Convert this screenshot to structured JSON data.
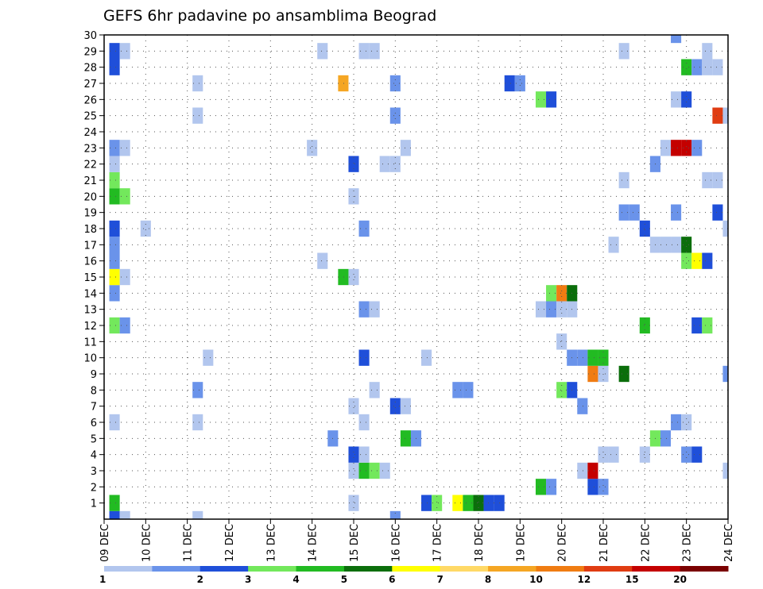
{
  "chart_data": {
    "type": "heatmap",
    "title": "GEFS 6hr padavine po ansamblima Beograd",
    "xlabel": "",
    "ylabel": "",
    "x_tick_labels": [
      "09 DEC",
      "10 DEC",
      "11 DEC",
      "12 DEC",
      "13 DEC",
      "14 DEC",
      "15 DEC",
      "16 DEC",
      "17 DEC",
      "18 DEC",
      "19 DEC",
      "20 DEC",
      "21 DEC",
      "22 DEC",
      "23 DEC",
      "24 DEC"
    ],
    "x_range_days": [
      9,
      24
    ],
    "step_hours": 6,
    "y_tick_labels": [
      "1",
      "2",
      "3",
      "4",
      "5",
      "6",
      "7",
      "8",
      "9",
      "10",
      "11",
      "12",
      "13",
      "14",
      "15",
      "16",
      "17",
      "18",
      "19",
      "20",
      "21",
      "22",
      "23",
      "24",
      "25",
      "26",
      "27",
      "28",
      "29",
      "30"
    ],
    "y_range": [
      0,
      30
    ],
    "grid": true,
    "colorbar": {
      "labels": [
        "1",
        "2",
        "3",
        "4",
        "5",
        "6",
        "7",
        "8",
        "10",
        "12",
        "15",
        "20"
      ],
      "colors": [
        "#b2c6ee",
        "#6a93ea",
        "#1f4fd9",
        "#73e85c",
        "#22bb22",
        "#0b6e0b",
        "#ffff00",
        "#ffd966",
        "#f5a623",
        "#f07c12",
        "#e03c12",
        "#c40000",
        "#7a0000"
      ]
    },
    "cells": [
      {
        "m": 0,
        "d": 9.25,
        "v": 3
      },
      {
        "m": 0,
        "d": 9.5,
        "v": 1
      },
      {
        "m": 0,
        "d": 11.25,
        "v": 1
      },
      {
        "m": 0,
        "d": 16.0,
        "v": 2
      },
      {
        "m": 1,
        "d": 9.25,
        "v": 5
      },
      {
        "m": 1,
        "d": 15.0,
        "v": 1
      },
      {
        "m": 1,
        "d": 16.75,
        "v": 3
      },
      {
        "m": 1,
        "d": 17.0,
        "v": 4
      },
      {
        "m": 1,
        "d": 17.5,
        "v": 7
      },
      {
        "m": 1,
        "d": 17.75,
        "v": 5
      },
      {
        "m": 1,
        "d": 18.0,
        "v": 6
      },
      {
        "m": 1,
        "d": 18.25,
        "v": 3
      },
      {
        "m": 1,
        "d": 18.5,
        "v": 3
      },
      {
        "m": 2,
        "d": 19.5,
        "v": 5
      },
      {
        "m": 2,
        "d": 19.75,
        "v": 2
      },
      {
        "m": 2,
        "d": 20.75,
        "v": 3
      },
      {
        "m": 2,
        "d": 21.0,
        "v": 2
      },
      {
        "m": 3,
        "d": 15.0,
        "v": 1
      },
      {
        "m": 3,
        "d": 15.25,
        "v": 5
      },
      {
        "m": 3,
        "d": 15.5,
        "v": 4
      },
      {
        "m": 3,
        "d": 15.75,
        "v": 1
      },
      {
        "m": 3,
        "d": 20.5,
        "v": 1
      },
      {
        "m": 3,
        "d": 20.75,
        "v": 20
      },
      {
        "m": 3,
        "d": 24.0,
        "v": 1
      },
      {
        "m": 4,
        "d": 15.0,
        "v": 3
      },
      {
        "m": 4,
        "d": 15.25,
        "v": 1
      },
      {
        "m": 4,
        "d": 21.0,
        "v": 1
      },
      {
        "m": 4,
        "d": 21.25,
        "v": 1
      },
      {
        "m": 4,
        "d": 22.0,
        "v": 1
      },
      {
        "m": 4,
        "d": 23.0,
        "v": 2
      },
      {
        "m": 4,
        "d": 23.25,
        "v": 3
      },
      {
        "m": 5,
        "d": 14.5,
        "v": 2
      },
      {
        "m": 5,
        "d": 16.25,
        "v": 5
      },
      {
        "m": 5,
        "d": 16.5,
        "v": 2
      },
      {
        "m": 5,
        "d": 22.25,
        "v": 4
      },
      {
        "m": 5,
        "d": 22.5,
        "v": 2
      },
      {
        "m": 6,
        "d": 9.25,
        "v": 1
      },
      {
        "m": 6,
        "d": 11.25,
        "v": 1
      },
      {
        "m": 6,
        "d": 15.25,
        "v": 1
      },
      {
        "m": 6,
        "d": 22.75,
        "v": 2
      },
      {
        "m": 6,
        "d": 23.0,
        "v": 1
      },
      {
        "m": 7,
        "d": 15.0,
        "v": 1
      },
      {
        "m": 7,
        "d": 16.0,
        "v": 3
      },
      {
        "m": 7,
        "d": 16.25,
        "v": 1
      },
      {
        "m": 7,
        "d": 20.5,
        "v": 2
      },
      {
        "m": 8,
        "d": 11.25,
        "v": 2
      },
      {
        "m": 8,
        "d": 15.5,
        "v": 1
      },
      {
        "m": 8,
        "d": 17.5,
        "v": 2
      },
      {
        "m": 8,
        "d": 17.75,
        "v": 2
      },
      {
        "m": 8,
        "d": 20.0,
        "v": 4
      },
      {
        "m": 8,
        "d": 20.25,
        "v": 3
      },
      {
        "m": 9,
        "d": 20.75,
        "v": 12
      },
      {
        "m": 9,
        "d": 21.0,
        "v": 1
      },
      {
        "m": 9,
        "d": 21.5,
        "v": 6
      },
      {
        "m": 9,
        "d": 24.0,
        "v": 2
      },
      {
        "m": 10,
        "d": 11.5,
        "v": 1
      },
      {
        "m": 10,
        "d": 15.25,
        "v": 3
      },
      {
        "m": 10,
        "d": 16.75,
        "v": 1
      },
      {
        "m": 10,
        "d": 20.25,
        "v": 2
      },
      {
        "m": 10,
        "d": 20.5,
        "v": 2
      },
      {
        "m": 10,
        "d": 20.75,
        "v": 5
      },
      {
        "m": 10,
        "d": 21.0,
        "v": 5
      },
      {
        "m": 11,
        "d": 20.0,
        "v": 1
      },
      {
        "m": 12,
        "d": 9.25,
        "v": 4
      },
      {
        "m": 12,
        "d": 9.5,
        "v": 2
      },
      {
        "m": 12,
        "d": 22.0,
        "v": 5
      },
      {
        "m": 12,
        "d": 23.25,
        "v": 3
      },
      {
        "m": 12,
        "d": 23.5,
        "v": 4
      },
      {
        "m": 13,
        "d": 15.25,
        "v": 2
      },
      {
        "m": 13,
        "d": 15.5,
        "v": 1
      },
      {
        "m": 13,
        "d": 19.5,
        "v": 1
      },
      {
        "m": 13,
        "d": 19.75,
        "v": 2
      },
      {
        "m": 13,
        "d": 20.0,
        "v": 1
      },
      {
        "m": 13,
        "d": 20.25,
        "v": 1
      },
      {
        "m": 14,
        "d": 9.25,
        "v": 2
      },
      {
        "m": 14,
        "d": 19.75,
        "v": 4
      },
      {
        "m": 14,
        "d": 20.0,
        "v": 12
      },
      {
        "m": 14,
        "d": 20.25,
        "v": 6
      },
      {
        "m": 15,
        "d": 9.25,
        "v": 7
      },
      {
        "m": 15,
        "d": 9.5,
        "v": 1
      },
      {
        "m": 15,
        "d": 14.75,
        "v": 5
      },
      {
        "m": 15,
        "d": 15.0,
        "v": 1
      },
      {
        "m": 16,
        "d": 9.25,
        "v": 2
      },
      {
        "m": 16,
        "d": 14.25,
        "v": 1
      },
      {
        "m": 16,
        "d": 23.0,
        "v": 4
      },
      {
        "m": 16,
        "d": 23.25,
        "v": 7
      },
      {
        "m": 16,
        "d": 23.5,
        "v": 3
      },
      {
        "m": 17,
        "d": 9.25,
        "v": 2
      },
      {
        "m": 17,
        "d": 21.25,
        "v": 1
      },
      {
        "m": 17,
        "d": 22.25,
        "v": 1
      },
      {
        "m": 17,
        "d": 22.5,
        "v": 1
      },
      {
        "m": 17,
        "d": 22.75,
        "v": 1
      },
      {
        "m": 17,
        "d": 23.0,
        "v": 6
      },
      {
        "m": 18,
        "d": 9.25,
        "v": 3
      },
      {
        "m": 18,
        "d": 10.0,
        "v": 1
      },
      {
        "m": 18,
        "d": 15.25,
        "v": 2
      },
      {
        "m": 18,
        "d": 22.0,
        "v": 3
      },
      {
        "m": 18,
        "d": 24.0,
        "v": 1
      },
      {
        "m": 19,
        "d": 21.5,
        "v": 2
      },
      {
        "m": 19,
        "d": 21.75,
        "v": 2
      },
      {
        "m": 19,
        "d": 22.75,
        "v": 2
      },
      {
        "m": 19,
        "d": 23.75,
        "v": 3
      },
      {
        "m": 20,
        "d": 9.25,
        "v": 5
      },
      {
        "m": 20,
        "d": 9.5,
        "v": 4
      },
      {
        "m": 20,
        "d": 15.0,
        "v": 1
      },
      {
        "m": 21,
        "d": 9.25,
        "v": 4
      },
      {
        "m": 21,
        "d": 21.5,
        "v": 1
      },
      {
        "m": 21,
        "d": 23.5,
        "v": 1
      },
      {
        "m": 21,
        "d": 23.75,
        "v": 1
      },
      {
        "m": 22,
        "d": 9.25,
        "v": 1
      },
      {
        "m": 22,
        "d": 15.0,
        "v": 3
      },
      {
        "m": 22,
        "d": 15.75,
        "v": 1
      },
      {
        "m": 22,
        "d": 16.0,
        "v": 1
      },
      {
        "m": 22,
        "d": 22.25,
        "v": 2
      },
      {
        "m": 23,
        "d": 9.25,
        "v": 2
      },
      {
        "m": 23,
        "d": 9.5,
        "v": 1
      },
      {
        "m": 23,
        "d": 14.0,
        "v": 1
      },
      {
        "m": 23,
        "d": 16.25,
        "v": 1
      },
      {
        "m": 23,
        "d": 22.5,
        "v": 1
      },
      {
        "m": 23,
        "d": 22.75,
        "v": 20
      },
      {
        "m": 23,
        "d": 23.0,
        "v": 20
      },
      {
        "m": 23,
        "d": 23.25,
        "v": 2
      },
      {
        "m": 25,
        "d": 11.25,
        "v": 1
      },
      {
        "m": 25,
        "d": 16.0,
        "v": 2
      },
      {
        "m": 25,
        "d": 23.75,
        "v": 15
      },
      {
        "m": 25,
        "d": 24.0,
        "v": 1
      },
      {
        "m": 26,
        "d": 19.5,
        "v": 4
      },
      {
        "m": 26,
        "d": 19.75,
        "v": 3
      },
      {
        "m": 26,
        "d": 22.75,
        "v": 1
      },
      {
        "m": 26,
        "d": 23.0,
        "v": 3
      },
      {
        "m": 27,
        "d": 11.25,
        "v": 1
      },
      {
        "m": 27,
        "d": 14.75,
        "v": 10
      },
      {
        "m": 27,
        "d": 16.0,
        "v": 2
      },
      {
        "m": 27,
        "d": 18.75,
        "v": 3
      },
      {
        "m": 27,
        "d": 19.0,
        "v": 2
      },
      {
        "m": 28,
        "d": 9.25,
        "v": 3
      },
      {
        "m": 28,
        "d": 23.0,
        "v": 5
      },
      {
        "m": 28,
        "d": 23.25,
        "v": 2
      },
      {
        "m": 28,
        "d": 23.5,
        "v": 1
      },
      {
        "m": 28,
        "d": 23.75,
        "v": 1
      },
      {
        "m": 29,
        "d": 9.25,
        "v": 3
      },
      {
        "m": 29,
        "d": 9.5,
        "v": 1
      },
      {
        "m": 29,
        "d": 14.25,
        "v": 1
      },
      {
        "m": 29,
        "d": 15.25,
        "v": 1
      },
      {
        "m": 29,
        "d": 15.5,
        "v": 1
      },
      {
        "m": 29,
        "d": 21.5,
        "v": 1
      },
      {
        "m": 29,
        "d": 23.5,
        "v": 1
      },
      {
        "m": 30,
        "d": 22.75,
        "v": 2
      }
    ]
  }
}
